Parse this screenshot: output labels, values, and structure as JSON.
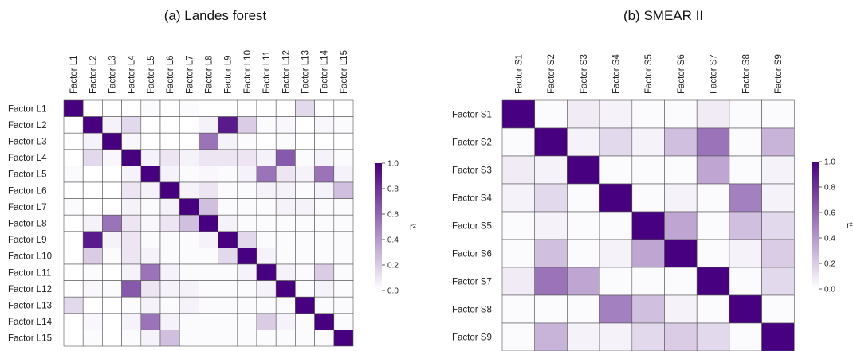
{
  "chart_data": [
    {
      "type": "heatmap",
      "title": "(a) Landes forest",
      "labels": [
        "Factor L1",
        "Factor L2",
        "Factor L3",
        "Factor L4",
        "Factor L5",
        "Factor L6",
        "Factor L7",
        "Factor L8",
        "Factor L9",
        "Factor L10",
        "Factor L11",
        "Factor L12",
        "Factor L13",
        "Factor L14",
        "Factor L15"
      ],
      "matrix": [
        [
          1.0,
          0.0,
          0.0,
          0.0,
          0.02,
          0.0,
          0.02,
          0.0,
          0.0,
          0.0,
          0.0,
          0.0,
          0.15,
          0.0,
          0.0
        ],
        [
          0.0,
          1.0,
          0.05,
          0.15,
          0.0,
          0.0,
          0.0,
          0.05,
          0.9,
          0.2,
          0.02,
          0.03,
          0.0,
          0.03,
          0.02
        ],
        [
          0.0,
          0.05,
          1.0,
          0.03,
          0.0,
          0.0,
          0.0,
          0.55,
          0.05,
          0.02,
          0.0,
          0.02,
          0.0,
          0.0,
          0.0
        ],
        [
          0.0,
          0.15,
          0.03,
          1.0,
          0.05,
          0.1,
          0.05,
          0.1,
          0.1,
          0.1,
          0.05,
          0.65,
          0.02,
          0.05,
          0.02
        ],
        [
          0.02,
          0.0,
          0.0,
          0.05,
          1.0,
          0.05,
          0.02,
          0.03,
          0.02,
          0.05,
          0.55,
          0.1,
          0.05,
          0.55,
          0.05
        ],
        [
          0.0,
          0.0,
          0.0,
          0.1,
          0.05,
          1.0,
          0.05,
          0.1,
          0.02,
          0.02,
          0.05,
          0.05,
          0.02,
          0.05,
          0.25
        ],
        [
          0.02,
          0.0,
          0.0,
          0.05,
          0.02,
          0.05,
          1.0,
          0.25,
          0.02,
          0.02,
          0.02,
          0.05,
          0.05,
          0.02,
          0.02
        ],
        [
          0.0,
          0.05,
          0.55,
          0.1,
          0.03,
          0.1,
          0.25,
          1.0,
          0.05,
          0.02,
          0.02,
          0.02,
          0.02,
          0.02,
          0.02
        ],
        [
          0.0,
          0.9,
          0.05,
          0.1,
          0.02,
          0.02,
          0.02,
          0.05,
          1.0,
          0.15,
          0.02,
          0.02,
          0.02,
          0.02,
          0.02
        ],
        [
          0.0,
          0.2,
          0.02,
          0.1,
          0.05,
          0.02,
          0.02,
          0.02,
          0.15,
          1.0,
          0.05,
          0.02,
          0.02,
          0.02,
          0.02
        ],
        [
          0.0,
          0.02,
          0.0,
          0.05,
          0.55,
          0.05,
          0.02,
          0.02,
          0.02,
          0.05,
          1.0,
          0.05,
          0.02,
          0.2,
          0.02
        ],
        [
          0.0,
          0.03,
          0.02,
          0.65,
          0.1,
          0.05,
          0.05,
          0.02,
          0.02,
          0.02,
          0.05,
          1.0,
          0.02,
          0.05,
          0.02
        ],
        [
          0.15,
          0.0,
          0.0,
          0.02,
          0.05,
          0.02,
          0.05,
          0.02,
          0.02,
          0.02,
          0.02,
          0.02,
          1.0,
          0.02,
          0.02
        ],
        [
          0.0,
          0.03,
          0.0,
          0.05,
          0.55,
          0.05,
          0.02,
          0.02,
          0.02,
          0.02,
          0.2,
          0.05,
          0.02,
          1.0,
          0.02
        ],
        [
          0.0,
          0.02,
          0.0,
          0.02,
          0.05,
          0.25,
          0.02,
          0.02,
          0.02,
          0.02,
          0.02,
          0.02,
          0.02,
          0.02,
          1.0
        ]
      ],
      "colorbar": {
        "label": "r²",
        "range": [
          0,
          1
        ],
        "ticks": [
          "0.0",
          "0.2",
          "0.4",
          "0.6",
          "0.8",
          "1.0"
        ]
      }
    },
    {
      "type": "heatmap",
      "title": "(b) SMEAR II",
      "labels": [
        "Factor S1",
        "Factor S2",
        "Factor S3",
        "Factor S4",
        "Factor S5",
        "Factor S6",
        "Factor S7",
        "Factor S8",
        "Factor S9"
      ],
      "matrix": [
        [
          1.0,
          0.02,
          0.08,
          0.05,
          0.02,
          0.02,
          0.08,
          0.02,
          0.02
        ],
        [
          0.02,
          1.0,
          0.05,
          0.15,
          0.05,
          0.25,
          0.55,
          0.02,
          0.3
        ],
        [
          0.08,
          0.05,
          1.0,
          0.02,
          0.02,
          0.02,
          0.35,
          0.02,
          0.05
        ],
        [
          0.05,
          0.15,
          0.02,
          1.0,
          0.02,
          0.05,
          0.02,
          0.5,
          0.05
        ],
        [
          0.02,
          0.05,
          0.02,
          0.02,
          1.0,
          0.35,
          0.02,
          0.25,
          0.15
        ],
        [
          0.02,
          0.25,
          0.02,
          0.05,
          0.35,
          1.0,
          0.02,
          0.05,
          0.2
        ],
        [
          0.08,
          0.55,
          0.35,
          0.02,
          0.02,
          0.02,
          1.0,
          0.02,
          0.15
        ],
        [
          0.02,
          0.02,
          0.02,
          0.5,
          0.25,
          0.05,
          0.02,
          1.0,
          0.02
        ],
        [
          0.02,
          0.3,
          0.05,
          0.05,
          0.15,
          0.2,
          0.15,
          0.02,
          1.0
        ]
      ],
      "colorbar": {
        "label": "r²",
        "range": [
          0,
          1
        ],
        "ticks": [
          "0.0",
          "0.2",
          "0.4",
          "0.6",
          "0.8",
          "1.0"
        ]
      }
    }
  ],
  "colors": {
    "low": "#ffffff",
    "high": "#47007f",
    "grid": "#555555"
  }
}
